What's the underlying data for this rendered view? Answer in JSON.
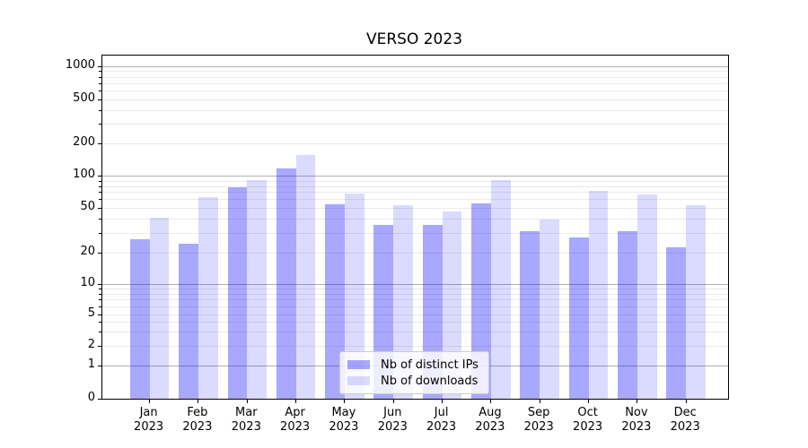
{
  "chart_data": {
    "type": "bar",
    "title": "VERSO 2023",
    "categories": [
      "Jan 2023",
      "Feb 2023",
      "Mar 2023",
      "Apr 2023",
      "May 2023",
      "Jun 2023",
      "Jul 2023",
      "Aug 2023",
      "Sep 2023",
      "Oct 2023",
      "Nov 2023",
      "Dec 2023"
    ],
    "series": [
      {
        "name": "Nb of distinct IPs",
        "color": "#0000ff",
        "alpha": 0.34,
        "solid_hex": "#a6a6ff",
        "values": [
          26,
          24,
          78,
          117,
          54,
          35,
          35,
          55,
          31,
          27,
          31,
          22
        ]
      },
      {
        "name": "Nb of downloads",
        "color": "#0000ff",
        "alpha": 0.14,
        "solid_hex": "#dcdcff",
        "values": [
          41,
          63,
          91,
          156,
          68,
          53,
          46,
          91,
          39,
          72,
          67,
          53
        ]
      }
    ],
    "yscale": "symlog",
    "y_ticks": [
      0,
      1,
      2,
      5,
      10,
      20,
      50,
      100,
      200,
      500,
      1000
    ],
    "ylim": [
      0,
      1250
    ],
    "xlabel": "",
    "ylabel": "",
    "grid": true,
    "legend_position": "lower center",
    "gridline_major_color": "#b0b0b0",
    "gridline_minor_color": "#e9e9ef"
  }
}
